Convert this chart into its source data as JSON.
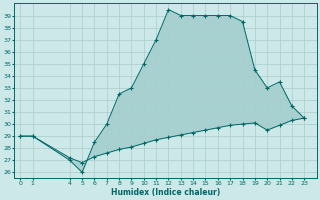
{
  "xlabel": "Humidex (Indice chaleur)",
  "bg_color": "#cce8e8",
  "grid_color": "#aacccc",
  "line_color": "#006666",
  "fill_color": "#006666",
  "upper_x": [
    0,
    1,
    4,
    5,
    6,
    7,
    8,
    9,
    10,
    11,
    12,
    13,
    14,
    15,
    16,
    17,
    18,
    19,
    20,
    21,
    22,
    23
  ],
  "upper_y": [
    29,
    29,
    27,
    26,
    28.5,
    30,
    32.5,
    33,
    35,
    37,
    39.5,
    39,
    39,
    39,
    39,
    39,
    38.5,
    34.5,
    33,
    33.5,
    31.5,
    30.5
  ],
  "lower_x": [
    0,
    1,
    4,
    5,
    6,
    7,
    8,
    9,
    10,
    11,
    12,
    13,
    14,
    15,
    16,
    17,
    18,
    19,
    20,
    21,
    22,
    23
  ],
  "lower_y": [
    29.0,
    29.0,
    27.2,
    26.8,
    27.3,
    27.6,
    27.9,
    28.1,
    28.4,
    28.7,
    28.9,
    29.1,
    29.3,
    29.5,
    29.7,
    29.9,
    30.0,
    30.1,
    29.5,
    29.9,
    30.3,
    30.5
  ],
  "ylim": [
    25.5,
    40.0
  ],
  "xlim": [
    -0.5,
    24.0
  ],
  "yticks": [
    26,
    27,
    28,
    29,
    30,
    31,
    32,
    33,
    34,
    35,
    36,
    37,
    38,
    39
  ],
  "xticks": [
    0,
    1,
    4,
    5,
    6,
    7,
    8,
    9,
    10,
    11,
    12,
    13,
    14,
    15,
    16,
    17,
    18,
    19,
    20,
    21,
    22,
    23
  ],
  "figsize": [
    3.2,
    2.0
  ],
  "dpi": 100
}
